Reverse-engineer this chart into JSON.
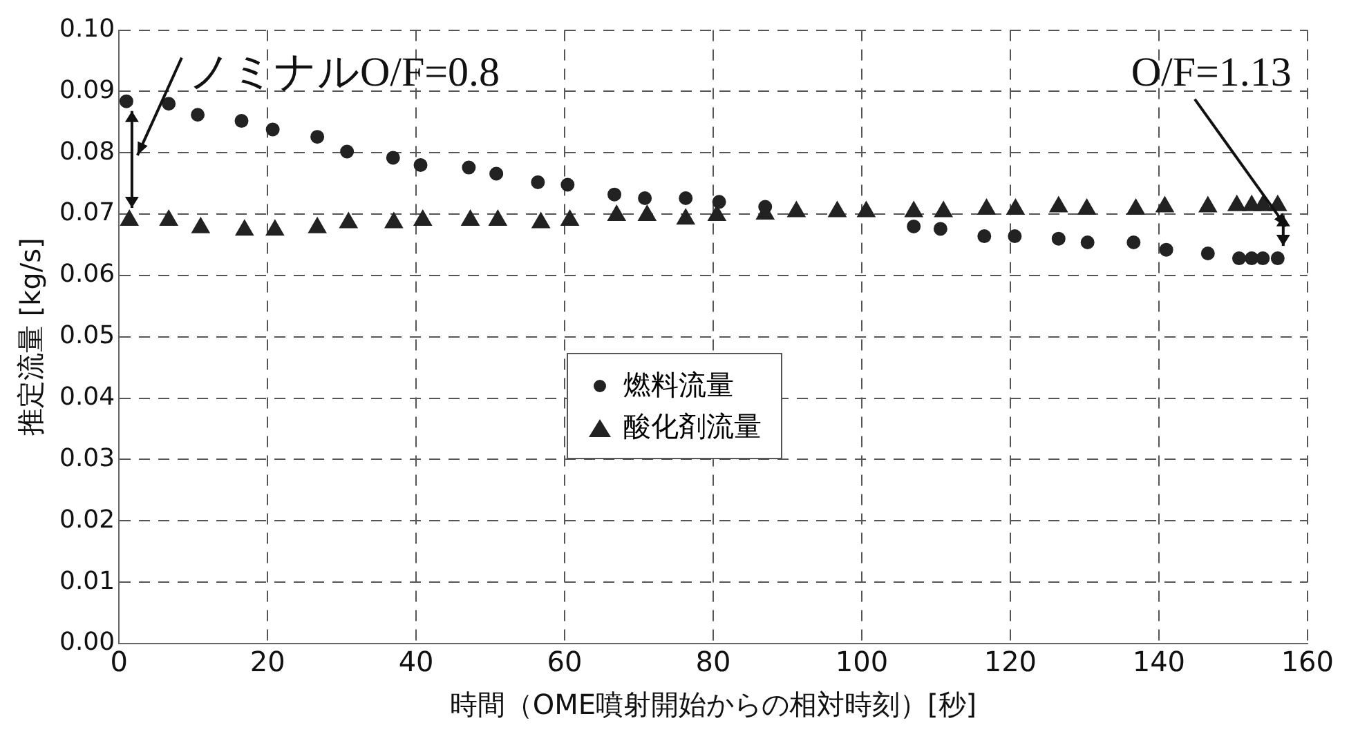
{
  "chart_data": {
    "type": "scatter",
    "xlabel": "時間（OME噴射開始からの相対時刻）[秒]",
    "ylabel": "推定流量 [kg/s]",
    "xlim": [
      0,
      160
    ],
    "xticks": [
      0,
      20,
      40,
      60,
      80,
      100,
      120,
      140,
      160
    ],
    "ylim": [
      0,
      0.1
    ],
    "yticks": [
      {
        "value": 0,
        "label": "0.00"
      },
      {
        "value": 0.01,
        "label": "0.01"
      },
      {
        "value": 0.02,
        "label": "0.02"
      },
      {
        "value": 0.03,
        "label": "0.03"
      },
      {
        "value": 0.04,
        "label": "0.04"
      },
      {
        "value": 0.05,
        "label": "0.05"
      },
      {
        "value": 0.06,
        "label": "0.06"
      },
      {
        "value": 0.07,
        "label": "0.07"
      },
      {
        "value": 0.08,
        "label": "0.08"
      },
      {
        "value": 0.09,
        "label": "0.09"
      },
      {
        "value": 0.1,
        "label": "0.10"
      }
    ],
    "grid": true,
    "legend": "center",
    "annotations": [
      "ノミナルO/F=0.8",
      "O/F=1.13"
    ],
    "series": [
      {
        "name": "燃料流量",
        "color": "#222222",
        "marker": "circle",
        "x": [
          1,
          6.7,
          10.6,
          16.5,
          20.7,
          26.7,
          30.7,
          36.9,
          40.6,
          47.1,
          50.8,
          56.4,
          60.4,
          66.7,
          70.8,
          76.3,
          80.8,
          87,
          107,
          110.6,
          116.5,
          120.6,
          126.5,
          130.4,
          136.6,
          141,
          146.6,
          150.8,
          152.5,
          154,
          156
        ],
        "values": [
          0.0884,
          0.088,
          0.0862,
          0.0852,
          0.0838,
          0.0826,
          0.0802,
          0.0792,
          0.078,
          0.0776,
          0.0766,
          0.0752,
          0.0748,
          0.0732,
          0.0726,
          0.0726,
          0.072,
          0.0712,
          0.068,
          0.0676,
          0.0664,
          0.0664,
          0.066,
          0.0654,
          0.0654,
          0.0642,
          0.0636,
          0.0628,
          0.0628,
          0.0628,
          0.0628
        ]
      },
      {
        "name": "酸化剤流量",
        "color": "#222222",
        "marker": "triangle",
        "x": [
          1.4,
          6.7,
          11,
          16.9,
          21,
          26.7,
          30.9,
          37,
          40.9,
          47.3,
          51,
          56.8,
          60.7,
          67,
          71.1,
          76.3,
          80.5,
          87,
          91.2,
          96.7,
          100.6,
          107,
          111,
          116.8,
          120.7,
          126.5,
          130.3,
          136.9,
          140.8,
          146.6,
          150.5,
          152.5,
          154,
          156
        ],
        "values": [
          0.069,
          0.069,
          0.0678,
          0.0674,
          0.0674,
          0.0678,
          0.0686,
          0.0686,
          0.069,
          0.069,
          0.069,
          0.0686,
          0.069,
          0.0698,
          0.0698,
          0.0692,
          0.0698,
          0.07,
          0.0704,
          0.0704,
          0.0704,
          0.0704,
          0.0704,
          0.0708,
          0.0708,
          0.0712,
          0.0708,
          0.0708,
          0.0712,
          0.0712,
          0.0714,
          0.0714,
          0.0714,
          0.0714
        ]
      }
    ]
  }
}
